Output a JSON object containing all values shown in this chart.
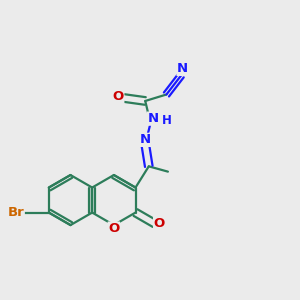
{
  "bg_color": "#ebebeb",
  "bond_color": "#2d7d5a",
  "bond_width": 1.6,
  "atom_colors": {
    "C": "#2d7d5a",
    "N": "#1a1aff",
    "O": "#cc0000",
    "Br": "#cc6600",
    "H": "#1a1aff"
  },
  "font_size": 9.5,
  "fig_size": [
    3.0,
    3.0
  ],
  "dpi": 100,
  "xlim": [
    0,
    10
  ],
  "ylim": [
    0,
    10
  ]
}
